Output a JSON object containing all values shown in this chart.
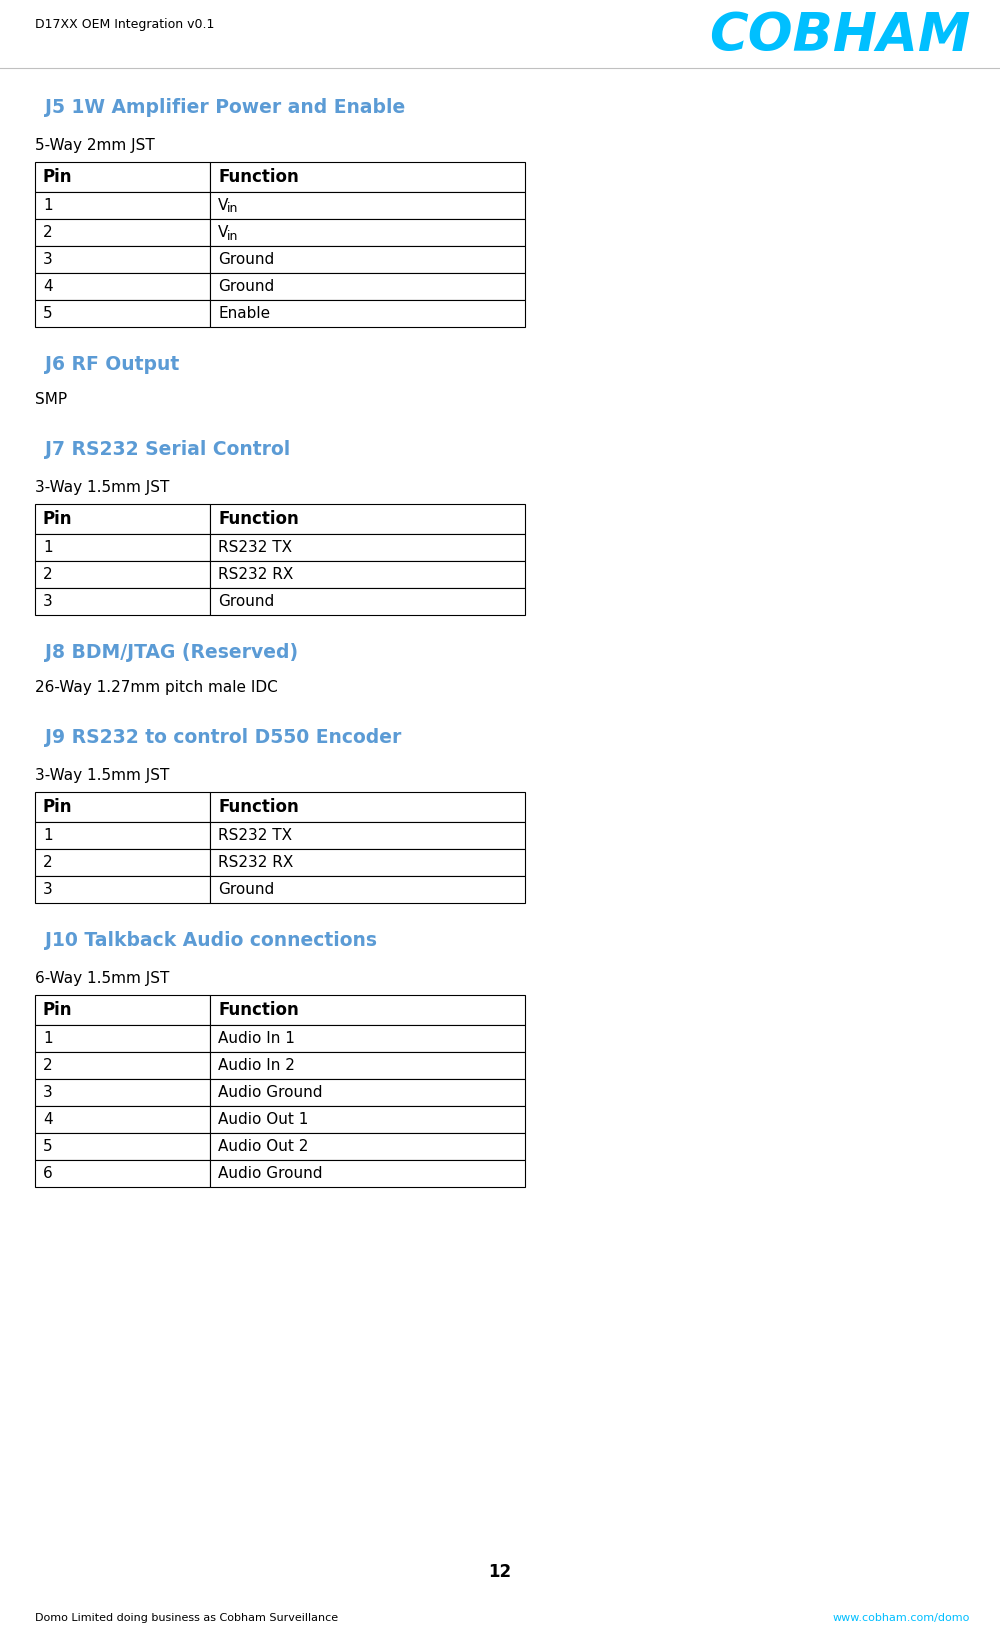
{
  "page_title": "D17XX OEM Integration v0.1",
  "page_number": "12",
  "footer_left": "Domo Limited doing business as Cobham Surveillance",
  "footer_right": "www.cobham.com/domo",
  "section_color": "#5b9bd5",
  "sections": [
    {
      "title": "J5 1W Amplifier Power and Enable",
      "subtitle": "5-Way 2mm JST",
      "has_table": true,
      "table_headers": [
        "Pin",
        "Function"
      ],
      "table_rows": [
        [
          "1",
          "VIN"
        ],
        [
          "2",
          "VIN"
        ],
        [
          "3",
          "Ground"
        ],
        [
          "4",
          "Ground"
        ],
        [
          "5",
          "Enable"
        ]
      ]
    },
    {
      "title": "J6 RF Output",
      "subtitle": "",
      "has_table": false,
      "description": "SMP"
    },
    {
      "title": "J7 RS232 Serial Control",
      "subtitle": "3-Way 1.5mm JST",
      "has_table": true,
      "table_headers": [
        "Pin",
        "Function"
      ],
      "table_rows": [
        [
          "1",
          "RS232 TX"
        ],
        [
          "2",
          "RS232 RX"
        ],
        [
          "3",
          "Ground"
        ]
      ]
    },
    {
      "title": "J8 BDM/JTAG (Reserved)",
      "subtitle": "",
      "has_table": false,
      "description": "26-Way 1.27mm pitch male IDC"
    },
    {
      "title": "J9 RS232 to control D550 Encoder",
      "subtitle": "3-Way 1.5mm JST",
      "has_table": true,
      "table_headers": [
        "Pin",
        "Function"
      ],
      "table_rows": [
        [
          "1",
          "RS232 TX"
        ],
        [
          "2",
          "RS232 RX"
        ],
        [
          "3",
          "Ground"
        ]
      ]
    },
    {
      "title": "J10 Talkback Audio connections",
      "subtitle": "6-Way 1.5mm JST",
      "has_table": true,
      "table_headers": [
        "Pin",
        "Function"
      ],
      "table_rows": [
        [
          "1",
          "Audio In 1"
        ],
        [
          "2",
          "Audio In 2"
        ],
        [
          "3",
          "Audio Ground"
        ],
        [
          "4",
          "Audio Out 1"
        ],
        [
          "5",
          "Audio Out 2"
        ],
        [
          "6",
          "Audio Ground"
        ]
      ]
    }
  ]
}
